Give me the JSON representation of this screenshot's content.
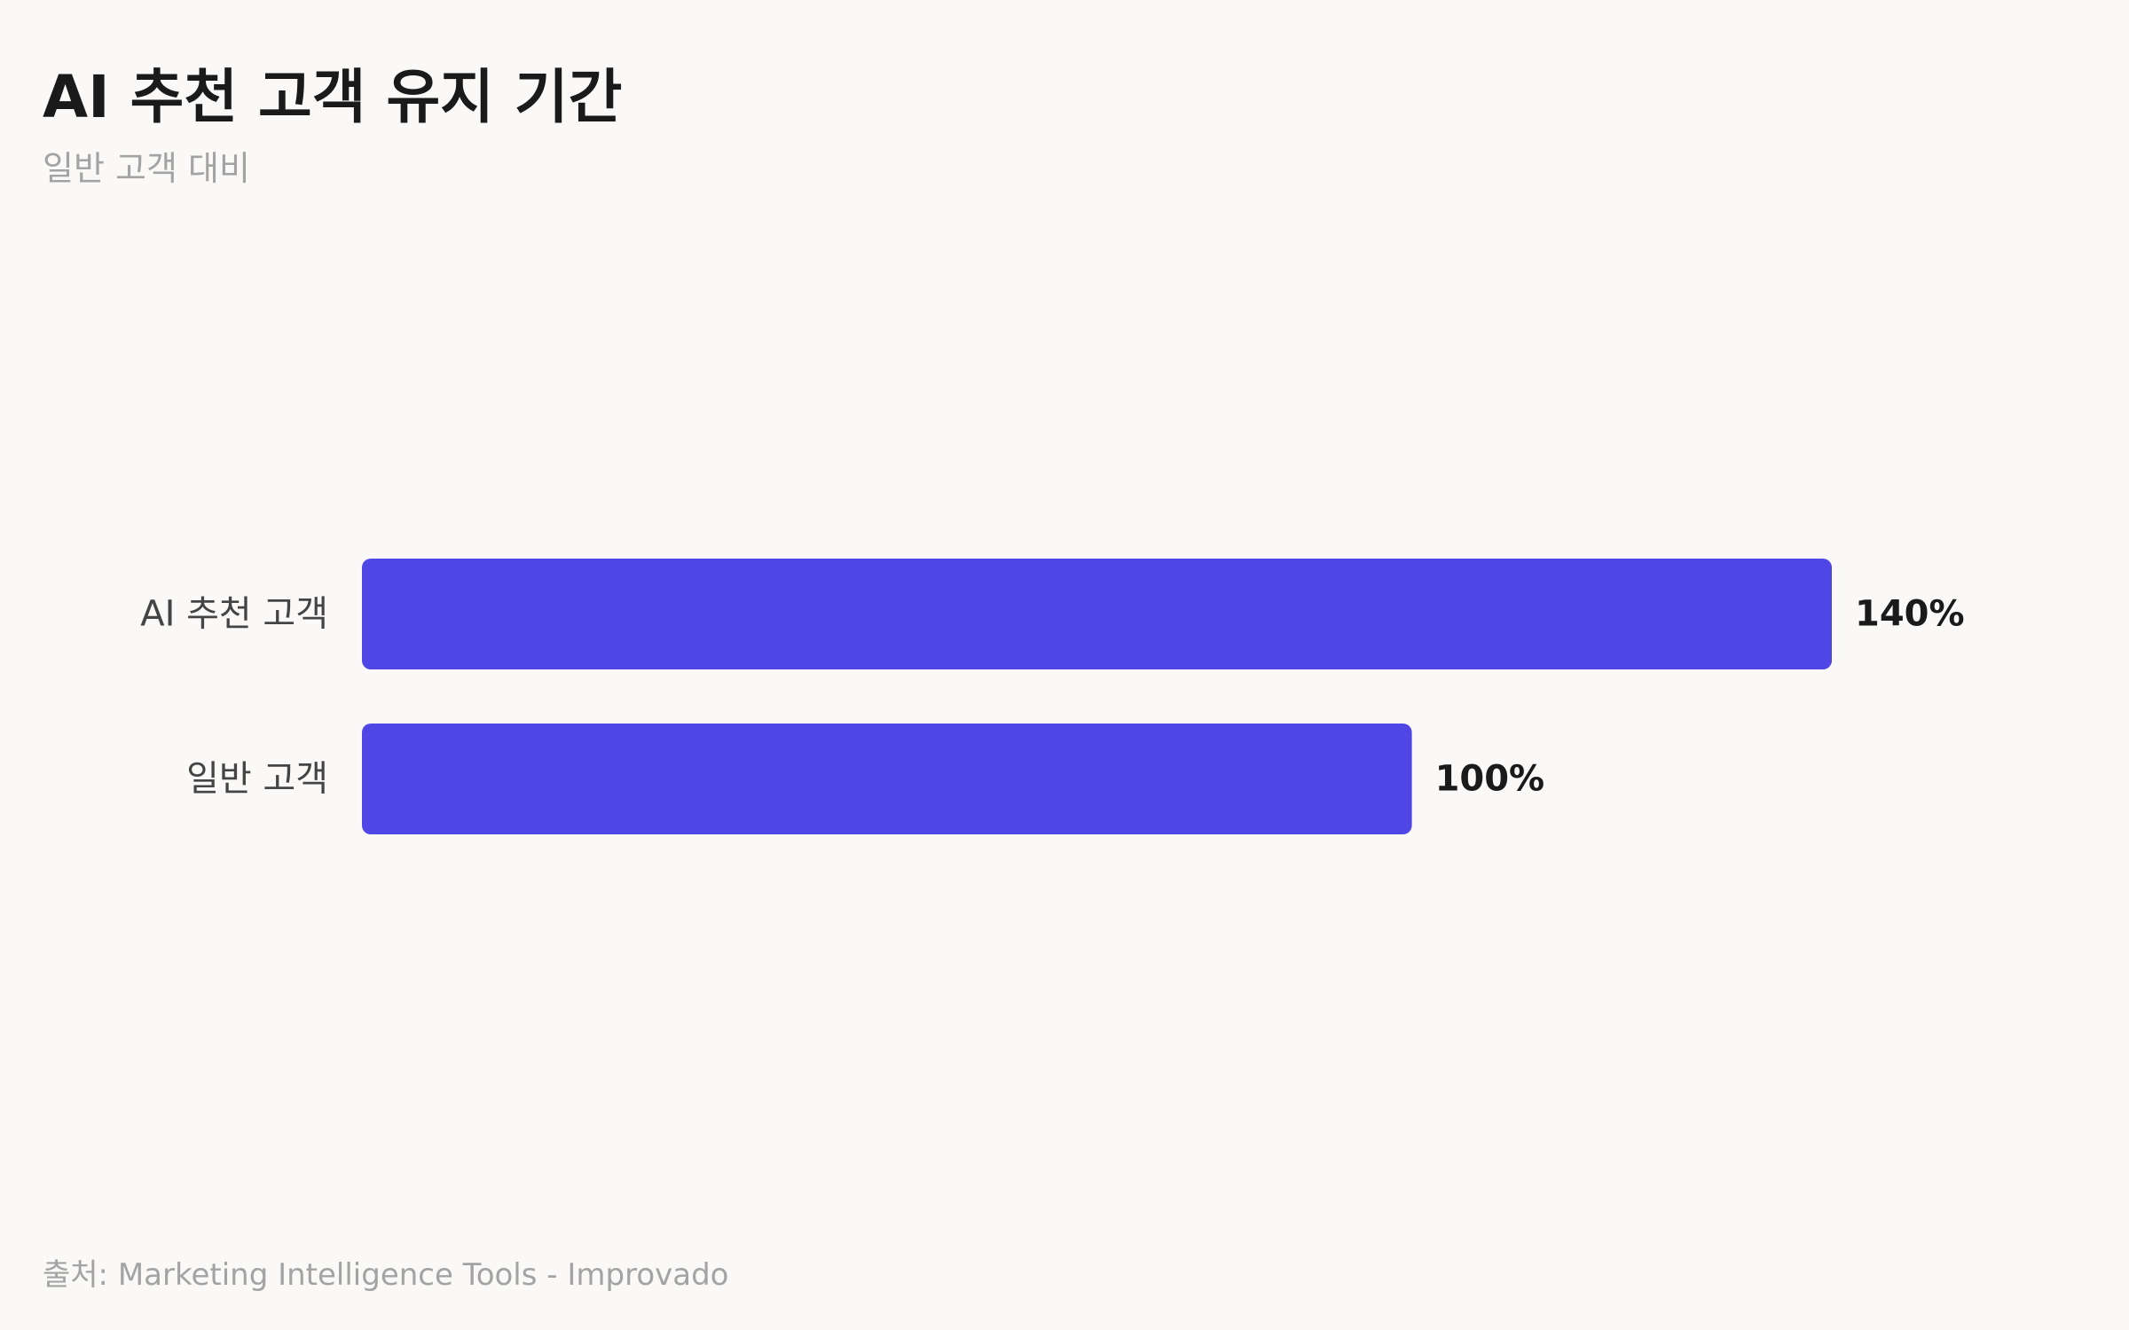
{
  "title": "AI 추천 고객 유지 기간",
  "subtitle": "일반 고객 대비",
  "source": "출처: Marketing Intelligence Tools - Improvado",
  "colors": {
    "bar": "#5046e5",
    "category_label": "#444444",
    "value_label": "#1a1a1a"
  },
  "chart_data": {
    "type": "bar",
    "orientation": "horizontal",
    "categories": [
      "AI 추천 고객",
      "일반 고객"
    ],
    "values": [
      140,
      100
    ],
    "value_labels": [
      "140%",
      "100%"
    ],
    "unit": "%",
    "xlim": [
      0,
      140
    ],
    "grid": false,
    "legend": "none"
  }
}
